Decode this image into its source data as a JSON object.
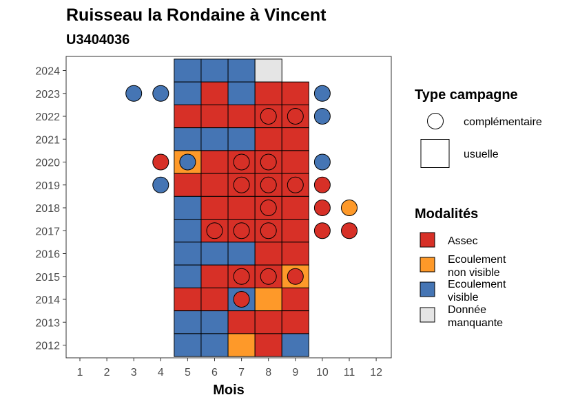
{
  "chart_data": {
    "type": "heatmap",
    "title": "Ruisseau la Rondaine à Vincent",
    "subtitle": "U3404036",
    "xlabel": "Mois",
    "ylabel": "",
    "x_ticks": [
      "1",
      "2",
      "3",
      "4",
      "5",
      "6",
      "7",
      "8",
      "9",
      "10",
      "11",
      "12"
    ],
    "y_ticks": [
      "2012",
      "2013",
      "2014",
      "2015",
      "2016",
      "2017",
      "2018",
      "2019",
      "2020",
      "2021",
      "2022",
      "2023",
      "2024"
    ],
    "xlim": [
      1,
      12
    ],
    "ylim": [
      2012,
      2024
    ],
    "grid": false,
    "legend_position": "right",
    "legend_type": {
      "title": "Type campagne",
      "entries": [
        {
          "key": "complementaire",
          "label": "complémentaire",
          "shape": "circle"
        },
        {
          "key": "usuelle",
          "label": "usuelle",
          "shape": "square"
        }
      ]
    },
    "legend_modalites": {
      "title": "Modalités",
      "entries": [
        {
          "key": "assec",
          "lines": [
            "Assec"
          ],
          "color": "#d73027"
        },
        {
          "key": "ecoul_nv",
          "lines": [
            "Ecoulement",
            "non visible"
          ],
          "color": "#fe9929"
        },
        {
          "key": "ecoul_v",
          "lines": [
            "Ecoulement",
            "visible"
          ],
          "color": "#4575b4"
        },
        {
          "key": "manquante",
          "lines": [
            "Donnée",
            "manquante"
          ],
          "color": "#e5e5e5"
        }
      ]
    },
    "usuelle": [
      {
        "year": 2024,
        "months": [
          "ecoul_v",
          "ecoul_v",
          "ecoul_v",
          "manquante",
          null
        ]
      },
      {
        "year": 2023,
        "months": [
          "ecoul_v",
          "assec",
          "ecoul_v",
          "assec",
          "assec"
        ]
      },
      {
        "year": 2022,
        "months": [
          "assec",
          "assec",
          "assec",
          "assec",
          "assec"
        ]
      },
      {
        "year": 2021,
        "months": [
          "ecoul_v",
          "ecoul_v",
          "ecoul_v",
          "assec",
          "assec"
        ]
      },
      {
        "year": 2020,
        "months": [
          "ecoul_nv",
          "assec",
          "assec",
          "assec",
          "assec"
        ]
      },
      {
        "year": 2019,
        "months": [
          "assec",
          "assec",
          "assec",
          "assec",
          "assec"
        ]
      },
      {
        "year": 2018,
        "months": [
          "ecoul_v",
          "assec",
          "assec",
          "assec",
          "assec"
        ]
      },
      {
        "year": 2017,
        "months": [
          "ecoul_v",
          "assec",
          "assec",
          "assec",
          "assec"
        ]
      },
      {
        "year": 2016,
        "months": [
          "ecoul_v",
          "ecoul_v",
          "ecoul_v",
          "assec",
          "assec"
        ]
      },
      {
        "year": 2015,
        "months": [
          "ecoul_v",
          "assec",
          "assec",
          "assec",
          "ecoul_nv"
        ]
      },
      {
        "year": 2014,
        "months": [
          "assec",
          "assec",
          "ecoul_v",
          "ecoul_nv",
          "assec"
        ]
      },
      {
        "year": 2013,
        "months": [
          "ecoul_v",
          "ecoul_v",
          "assec",
          "assec",
          "assec"
        ]
      },
      {
        "year": 2012,
        "months": [
          "ecoul_v",
          "ecoul_v",
          "ecoul_nv",
          "assec",
          "ecoul_v"
        ]
      }
    ],
    "usuelle_months": [
      5,
      6,
      7,
      8,
      9
    ],
    "complementaire": [
      {
        "year": 2023,
        "month": 3,
        "mod": "ecoul_v"
      },
      {
        "year": 2023,
        "month": 4,
        "mod": "ecoul_v"
      },
      {
        "year": 2023,
        "month": 10,
        "mod": "ecoul_v"
      },
      {
        "year": 2022,
        "month": 8,
        "mod": "assec"
      },
      {
        "year": 2022,
        "month": 9,
        "mod": "assec"
      },
      {
        "year": 2022,
        "month": 10,
        "mod": "ecoul_v"
      },
      {
        "year": 2020,
        "month": 4,
        "mod": "assec"
      },
      {
        "year": 2020,
        "month": 5,
        "mod": "ecoul_v"
      },
      {
        "year": 2020,
        "month": 7,
        "mod": "assec"
      },
      {
        "year": 2020,
        "month": 8,
        "mod": "assec"
      },
      {
        "year": 2020,
        "month": 10,
        "mod": "ecoul_v"
      },
      {
        "year": 2019,
        "month": 4,
        "mod": "ecoul_v"
      },
      {
        "year": 2019,
        "month": 7,
        "mod": "assec"
      },
      {
        "year": 2019,
        "month": 8,
        "mod": "assec"
      },
      {
        "year": 2019,
        "month": 9,
        "mod": "assec"
      },
      {
        "year": 2019,
        "month": 10,
        "mod": "assec"
      },
      {
        "year": 2018,
        "month": 8,
        "mod": "assec"
      },
      {
        "year": 2018,
        "month": 10,
        "mod": "assec"
      },
      {
        "year": 2018,
        "month": 11,
        "mod": "ecoul_nv"
      },
      {
        "year": 2017,
        "month": 6,
        "mod": "assec"
      },
      {
        "year": 2017,
        "month": 7,
        "mod": "assec"
      },
      {
        "year": 2017,
        "month": 8,
        "mod": "assec"
      },
      {
        "year": 2017,
        "month": 10,
        "mod": "assec"
      },
      {
        "year": 2017,
        "month": 11,
        "mod": "assec"
      },
      {
        "year": 2015,
        "month": 7,
        "mod": "assec"
      },
      {
        "year": 2015,
        "month": 8,
        "mod": "assec"
      },
      {
        "year": 2015,
        "month": 9,
        "mod": "assec"
      },
      {
        "year": 2014,
        "month": 7,
        "mod": "assec"
      }
    ]
  }
}
